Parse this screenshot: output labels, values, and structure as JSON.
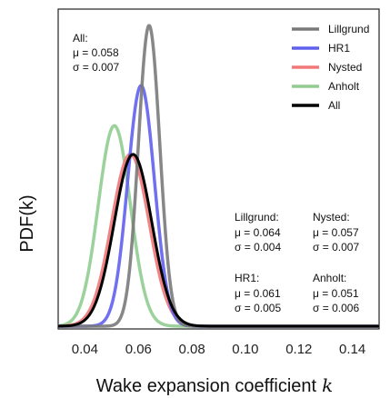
{
  "chart_data": {
    "type": "line",
    "xlabel": "Wake expansion coefficient",
    "xlabel_symbol": "k",
    "ylabel": "PDF(k)",
    "xlim": [
      0.03,
      0.15
    ],
    "ylim": [
      0,
      1
    ],
    "x_ticks": [
      0.04,
      0.06,
      0.08,
      0.1,
      0.12,
      0.14
    ],
    "x_tick_labels": [
      "0.04",
      "0.06",
      "0.08",
      "0.10",
      "0.12",
      "0.14"
    ],
    "grid": false,
    "legend_position": "top-right",
    "series": [
      {
        "name": "Lillgrund",
        "mu": 0.064,
        "sigma": 0.004,
        "color": "#7a7a7a"
      },
      {
        "name": "HR1",
        "mu": 0.061,
        "sigma": 0.005,
        "color": "#6060ee"
      },
      {
        "name": "Nysted",
        "mu": 0.057,
        "sigma": 0.007,
        "color": "#f07878"
      },
      {
        "name": "Anholt",
        "mu": 0.051,
        "sigma": 0.006,
        "color": "#90cc90"
      },
      {
        "name": "All",
        "mu": 0.058,
        "sigma": 0.007,
        "color": "#000000"
      }
    ],
    "annotations": {
      "all": {
        "title": "All:",
        "mu": "μ = 0.058",
        "sigma": "σ = 0.007"
      },
      "lillgrund": {
        "title": "Lillgrund:",
        "mu": "μ = 0.064",
        "sigma": "σ = 0.004"
      },
      "nysted": {
        "title": "Nysted:",
        "mu": "μ = 0.057",
        "sigma": "σ = 0.007"
      },
      "hr1": {
        "title": "HR1:",
        "mu": "μ = 0.061",
        "sigma": "σ = 0.005"
      },
      "anholt": {
        "title": "Anholt:",
        "mu": "μ = 0.051",
        "sigma": "σ = 0.006"
      }
    }
  }
}
